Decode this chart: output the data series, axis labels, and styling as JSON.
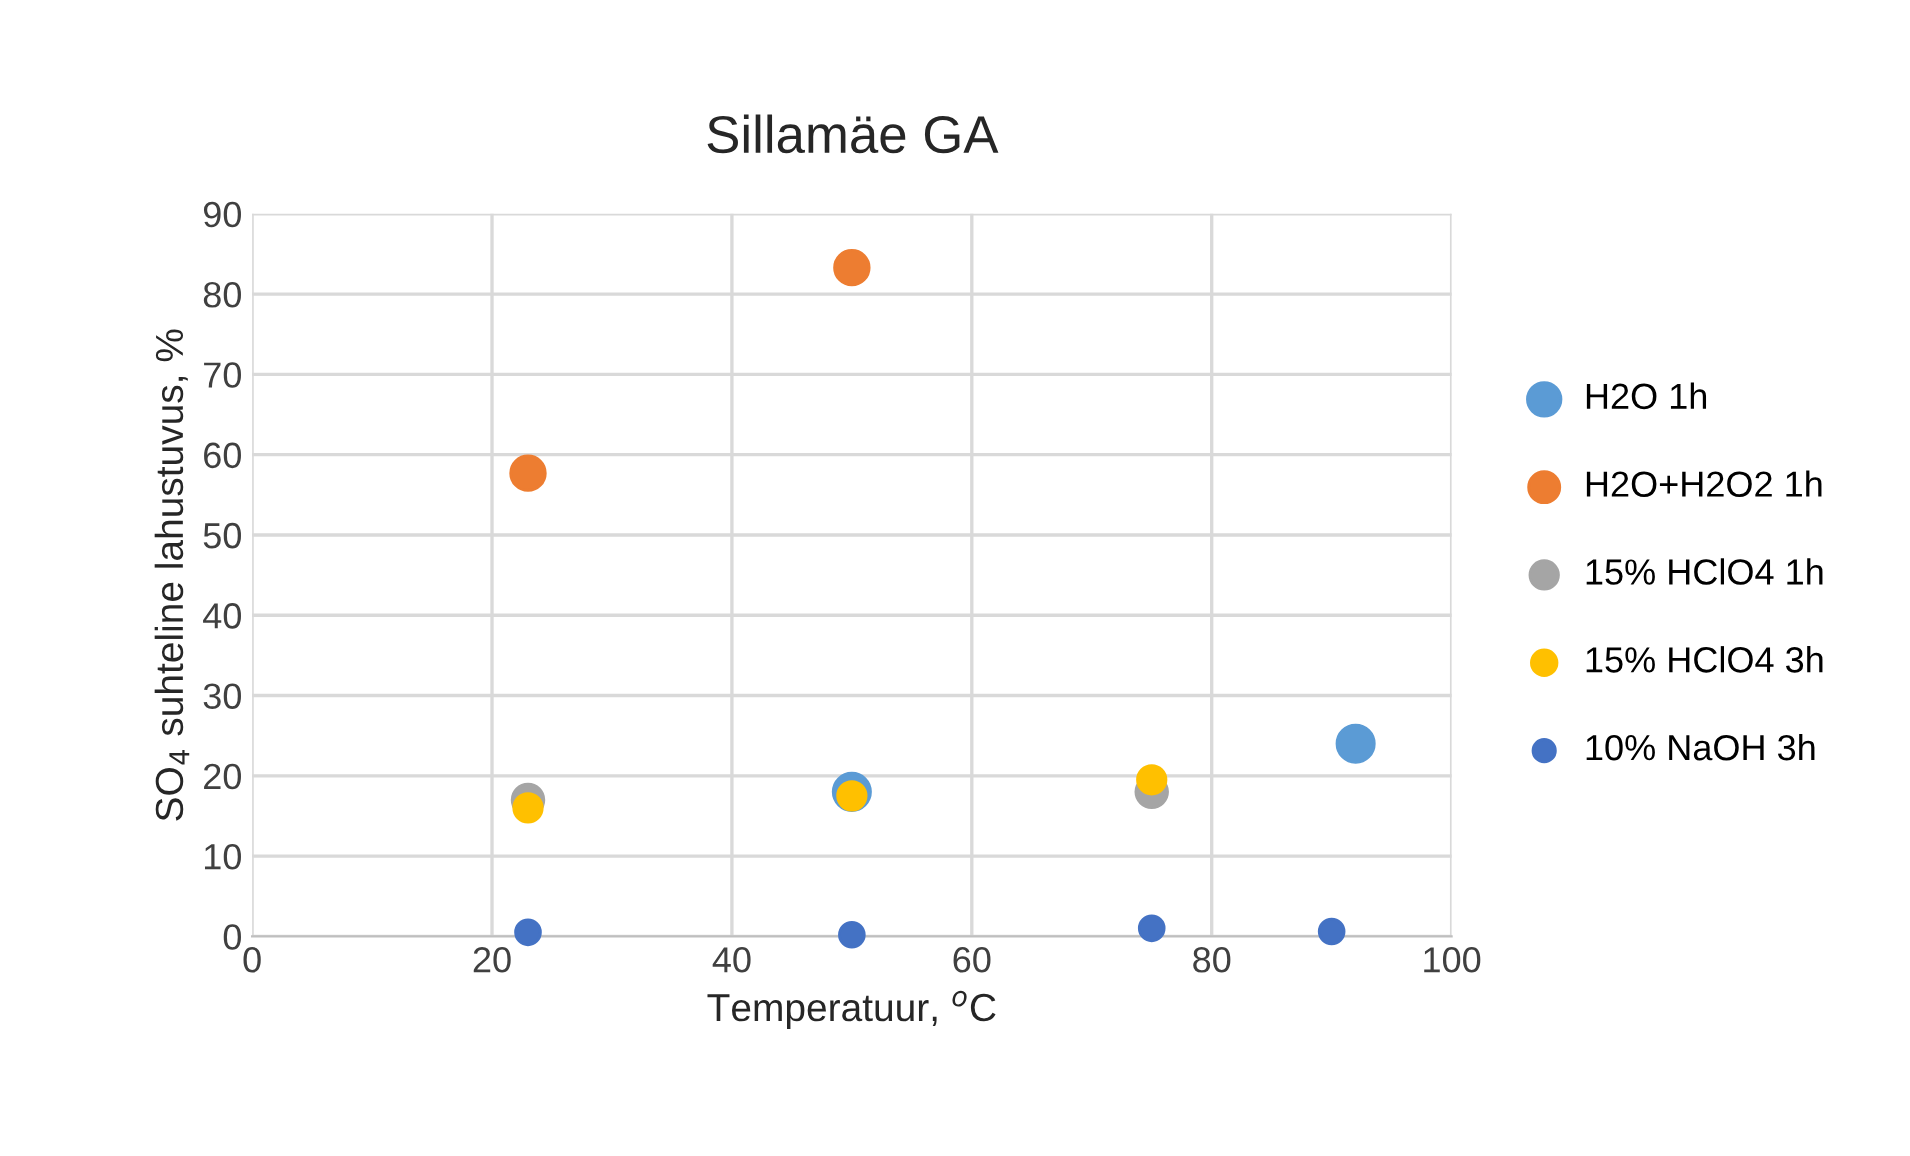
{
  "chart_data": {
    "type": "scatter",
    "title": "Sillamäe GA",
    "xlabel": "Temperatuur, $^{o}$C",
    "ylabel": "SO$_{4}$ suhteline lahustuvus, %",
    "xlim": [
      0,
      100
    ],
    "xticks": [
      0,
      20,
      40,
      60,
      80,
      100
    ],
    "ylim": [
      0,
      90
    ],
    "yticks": [
      0,
      10,
      20,
      30,
      40,
      50,
      60,
      70,
      80,
      90
    ],
    "grid": true,
    "legend": "right",
    "marker": "circle",
    "series": [
      {
        "name": "H2O 1h",
        "color": "#5b9bd5",
        "x": [
          50,
          92
        ],
        "values": [
          18,
          24
        ]
      },
      {
        "name": "H2O+H2O2 1h",
        "color": "#ed7d31",
        "x": [
          23,
          50
        ],
        "values": [
          57.7,
          83.3
        ]
      },
      {
        "name": "15% HClO4 1h",
        "color": "#a5a5a5",
        "x": [
          23,
          75
        ],
        "values": [
          17,
          18
        ]
      },
      {
        "name": "15% HClO4 3h",
        "color": "#ffc000",
        "x": [
          23,
          50,
          75
        ],
        "values": [
          16,
          17.5,
          19.5
        ]
      },
      {
        "name": "10% NaOH 3h",
        "color": "#4472c4",
        "x": [
          23,
          50,
          75,
          90
        ],
        "values": [
          0.5,
          0.2,
          1,
          0.6
        ]
      }
    ]
  }
}
